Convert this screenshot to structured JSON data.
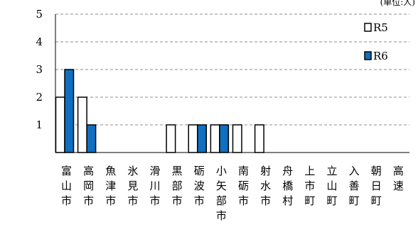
{
  "chart_data": {
    "type": "bar",
    "unit_label": "(単位:人)",
    "categories": [
      "富山市",
      "高岡市",
      "魚津市",
      "氷見市",
      "滑川市",
      "黒部市",
      "砺波市",
      "小矢部市",
      "南砺市",
      "射水市",
      "舟橋村",
      "上市町",
      "立山町",
      "入善町",
      "朝日町",
      "高速"
    ],
    "series": [
      {
        "name": "R5",
        "color": "#ffffff",
        "values": [
          2,
          2,
          0,
          0,
          0,
          1,
          1,
          1,
          1,
          1,
          0,
          0,
          0,
          0,
          0,
          0
        ]
      },
      {
        "name": "R6",
        "color": "#0f6fc0",
        "values": [
          3,
          1,
          0,
          0,
          0,
          0,
          1,
          1,
          0,
          0,
          0,
          0,
          0,
          0,
          0,
          0
        ]
      }
    ],
    "ylim": [
      0,
      5
    ],
    "yticks": [
      1,
      2,
      3,
      4,
      5
    ],
    "grid": true,
    "legend_position": "right"
  }
}
